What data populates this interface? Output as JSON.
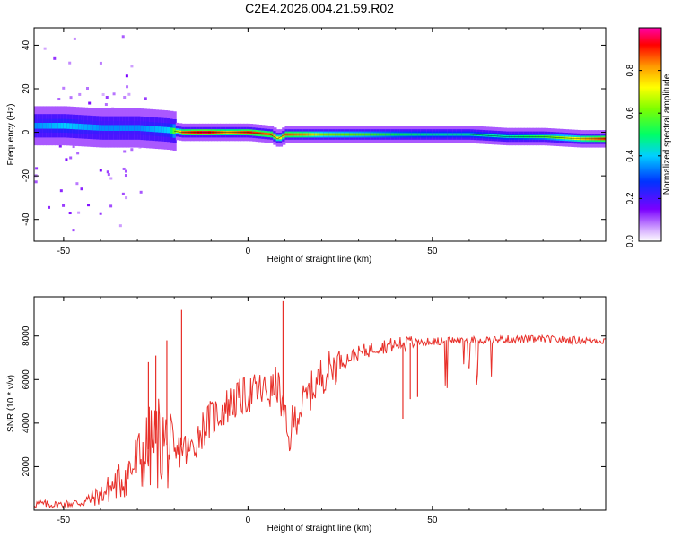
{
  "title": "C2E4.2026.004.21.59.R02",
  "chart_data": [
    {
      "type": "heatmap",
      "xlabel": "Height of straight line (km)",
      "ylabel": "Frequency (Hz)",
      "xlim": [
        -58,
        97
      ],
      "ylim": [
        -50,
        48
      ],
      "x_ticks": [
        -50,
        0,
        50
      ],
      "y_ticks": [
        -40,
        -20,
        0,
        20,
        40
      ],
      "colorbar": {
        "label": "Normalized spectral amplitude",
        "range": [
          0,
          1
        ],
        "ticks": [
          "0.0",
          "0.2",
          "0.4",
          "0.6",
          "0.8"
        ],
        "tick_values": [
          0.0,
          0.2,
          0.4,
          0.6,
          0.8
        ]
      },
      "ridge": {
        "x": [
          -58,
          -50,
          -40,
          -30,
          -22,
          -18,
          -12,
          -6,
          0,
          6,
          8,
          10,
          15,
          20,
          30,
          40,
          50,
          60,
          70,
          80,
          90,
          97
        ],
        "freq": [
          3,
          3,
          2,
          2,
          1,
          0,
          0,
          0,
          0,
          -1,
          -3,
          -1,
          -1,
          -1,
          -1,
          -1,
          -1,
          -1,
          -2,
          -2,
          -3,
          -3
        ],
        "peak_amplitude": [
          0.35,
          0.4,
          0.35,
          0.35,
          0.4,
          0.85,
          0.95,
          0.8,
          0.9,
          0.85,
          0.7,
          0.85,
          0.8,
          0.65,
          0.6,
          0.5,
          0.45,
          0.45,
          0.45,
          0.55,
          0.75,
          0.9
        ]
      }
    },
    {
      "type": "line",
      "xlabel": "Height of straight line (km)",
      "ylabel": "SNR (10 * v/v)",
      "xlim": [
        -58,
        97
      ],
      "ylim": [
        0,
        9800
      ],
      "x_ticks": [
        -50,
        0,
        50
      ],
      "y_ticks": [
        2000,
        4000,
        6000,
        8000
      ],
      "color": "#e8302a",
      "series": [
        {
          "x": [
            -58,
            -52,
            -45,
            -40,
            -35,
            -30,
            -27,
            -24,
            -22,
            -20,
            -18,
            -16,
            -13,
            -10,
            -7,
            -4,
            0,
            3,
            6,
            8,
            10,
            11,
            12,
            14,
            16,
            20,
            25,
            30,
            35,
            40,
            45,
            50,
            55,
            60,
            70,
            80,
            90,
            97
          ],
          "y": [
            300,
            250,
            350,
            700,
            1300,
            2200,
            2800,
            3200,
            3000,
            2200,
            3000,
            2600,
            3600,
            4200,
            4600,
            5000,
            5300,
            5500,
            5400,
            5800,
            4200,
            3000,
            4000,
            4600,
            5200,
            6200,
            6800,
            7200,
            7500,
            7600,
            7700,
            7750,
            7800,
            7800,
            7850,
            7850,
            7800,
            7800
          ],
          "spikes": [
            {
              "x": -27,
              "y": 6800
            },
            {
              "x": -25,
              "y": 7100
            },
            {
              "x": -22,
              "y": 7800
            },
            {
              "x": -18,
              "y": 9200
            },
            {
              "x": 9.5,
              "y": 9600
            },
            {
              "x": 42,
              "y": 4200
            },
            {
              "x": 44,
              "y": 5100
            },
            {
              "x": 46,
              "y": 5200
            }
          ]
        }
      ]
    }
  ]
}
